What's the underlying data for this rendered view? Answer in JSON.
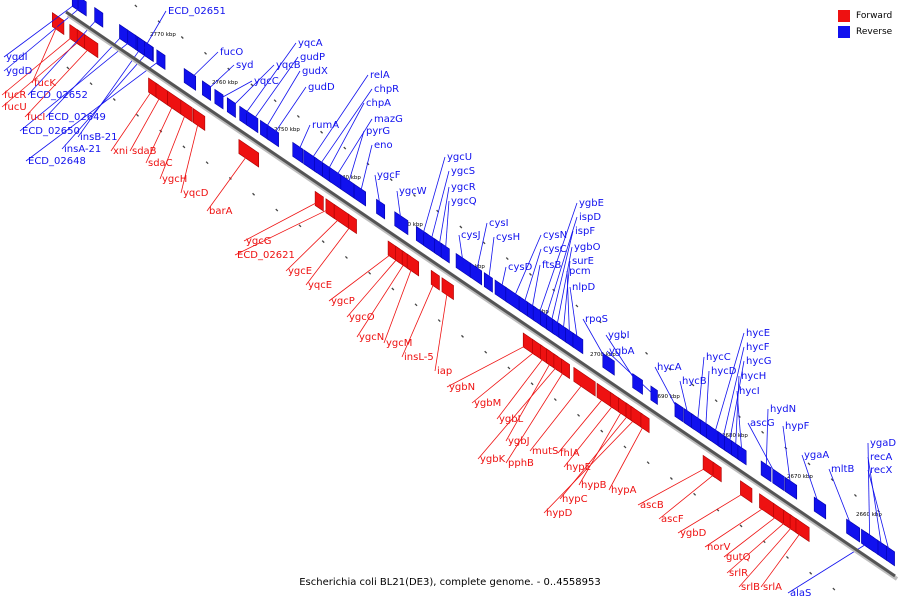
{
  "caption": "Escherichia coli BL21(DE3), complete genome. - 0..4558953",
  "legend": {
    "forward_label": "Forward",
    "reverse_label": "Reverse",
    "forward_color": "#ee1111",
    "reverse_color": "#1111ee"
  },
  "chart_data": {
    "type": "linear genome map",
    "strands": [
      "Forward",
      "Reverse"
    ],
    "axis_ticks": [
      "2770 kbp",
      "2760 kbp",
      "2750 kbp",
      "2740 kbp",
      "2730 kbp",
      "2720 kbp",
      "2710 kbp",
      "2700 kbp",
      "2690 kbp",
      "2680 kbp",
      "2670 kbp",
      "2660 kbp"
    ],
    "forward_genes": [
      "fucK",
      "fucR",
      "fucU",
      "fucI",
      "xni",
      "sdaB",
      "sdaC",
      "ygcH",
      "yqcD",
      "barA",
      "ygcG",
      "ECD_02621",
      "ygcE",
      "yqcE",
      "ygcP",
      "ygcO",
      "ygcN",
      "ygcM",
      "insL-5",
      "iap",
      "ygbN",
      "ygbM",
      "ygbL",
      "ygbJ",
      "ygbK",
      "pphB",
      "mutS",
      "fhlA",
      "hypE",
      "hypB",
      "hypC",
      "hypD",
      "hypA",
      "ascB",
      "ascF",
      "ygbD",
      "norV",
      "gutQ",
      "srlR",
      "srlB",
      "srlA"
    ],
    "reverse_genes": [
      "ECD_02651",
      "ygdI",
      "ygdD",
      "ECD_02652",
      "ECD_02649",
      "ECD_02650",
      "insB-21",
      "insA-21",
      "ECD_02648",
      "fucO",
      "syd",
      "yqcC",
      "yqcB",
      "yqcA",
      "gudP",
      "gudX",
      "gudD",
      "rumA",
      "relA",
      "chpR",
      "chpA",
      "mazG",
      "pyrG",
      "eno",
      "ygcF",
      "ygcW",
      "ygcU",
      "ygcS",
      "ygcR",
      "ygcQ",
      "cysJ",
      "cysI",
      "cysH",
      "cysD",
      "cysN",
      "cysC",
      "ftsB",
      "ygbE",
      "ispD",
      "ispF",
      "ygbO",
      "surE",
      "pcm",
      "nlpD",
      "rpoS",
      "ygbI",
      "ygbA",
      "hycA",
      "hycB",
      "hycC",
      "hycD",
      "hycE",
      "hycF",
      "hycG",
      "hycH",
      "hycI",
      "hydN",
      "ascG",
      "hypF",
      "ygaA",
      "mltB",
      "ygaD",
      "recA",
      "recX",
      "alaS"
    ]
  }
}
